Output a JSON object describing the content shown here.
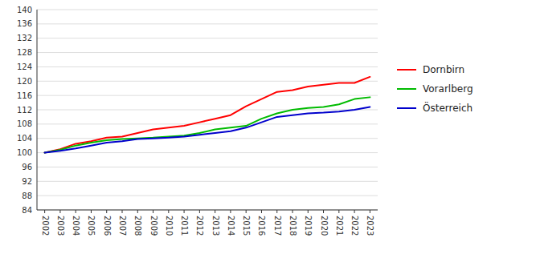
{
  "chart_data": {
    "type": "line",
    "categories": [
      "2002",
      "2003",
      "2004",
      "2005",
      "2006",
      "2007",
      "2008",
      "2009",
      "2010",
      "2011",
      "2012",
      "2013",
      "2014",
      "2015",
      "2016",
      "2017",
      "2018",
      "2019",
      "2020",
      "2021",
      "2022",
      "2023"
    ],
    "series": [
      {
        "name": "Dornbirn",
        "color": "#ff0000",
        "values": [
          100.0,
          101.0,
          102.5,
          103.2,
          104.2,
          104.5,
          105.5,
          106.5,
          107.0,
          107.5,
          108.5,
          109.5,
          110.5,
          113.0,
          115.0,
          117.0,
          117.5,
          118.5,
          119.0,
          119.5,
          119.5,
          121.2
        ]
      },
      {
        "name": "Vorarlberg",
        "color": "#00bb00",
        "values": [
          100.0,
          100.8,
          102.0,
          102.8,
          103.5,
          103.8,
          104.0,
          104.2,
          104.5,
          104.8,
          105.5,
          106.5,
          107.0,
          107.5,
          109.5,
          111.0,
          112.0,
          112.5,
          112.8,
          113.5,
          115.0,
          115.5
        ]
      },
      {
        "name": "Österreich",
        "color": "#0000cc",
        "values": [
          100.0,
          100.5,
          101.2,
          102.0,
          102.8,
          103.2,
          103.8,
          104.0,
          104.2,
          104.5,
          105.0,
          105.5,
          106.0,
          107.0,
          108.5,
          110.0,
          110.5,
          111.0,
          111.2,
          111.5,
          112.0,
          112.8
        ]
      }
    ],
    "ylim": [
      84,
      140
    ],
    "yticks": [
      84,
      88,
      92,
      96,
      100,
      104,
      108,
      112,
      116,
      120,
      124,
      128,
      132,
      136,
      140
    ],
    "grid": true,
    "legend": "right"
  }
}
